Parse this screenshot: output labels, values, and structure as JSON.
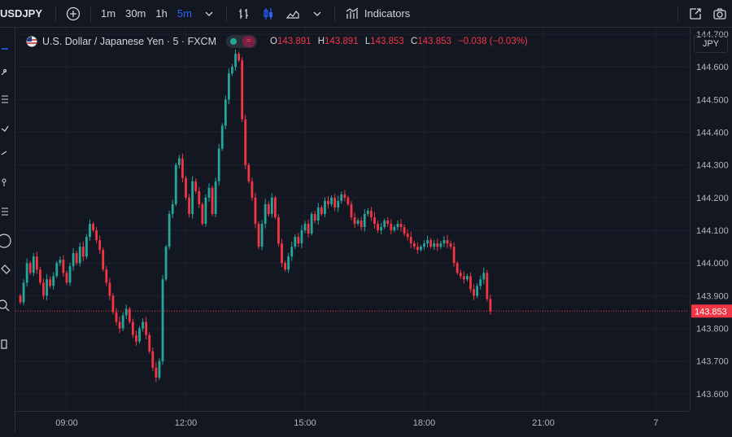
{
  "toolbar": {
    "symbol": "USDJPY",
    "intervals": [
      "1m",
      "30m",
      "1h",
      "5m"
    ],
    "active_interval": "5m",
    "indicators_label": "Indicators"
  },
  "legend": {
    "title": "U.S. Dollar / Japanese Yen · 5 · FXCM",
    "o_label": "O",
    "o_value": "143.891",
    "h_label": "H",
    "h_value": "143.891",
    "l_label": "L",
    "l_value": "143.853",
    "c_label": "C",
    "c_value": "143.853",
    "change": "−0.038 (−0.03%)"
  },
  "currency_selector": "JPY",
  "colors": {
    "up": "#26a69a",
    "down": "#f23645",
    "background": "#131722",
    "grid": "#1e222d"
  },
  "chart_data": {
    "type": "candlestick",
    "ylim": [
      143.55,
      144.72
    ],
    "yticks": [
      143.6,
      143.7,
      143.8,
      143.9,
      144.0,
      144.1,
      144.2,
      144.3,
      144.4,
      144.5,
      144.6,
      144.7
    ],
    "ytick_labels": [
      "143.600",
      "143.700",
      "143.800",
      "143.900",
      "144.000",
      "144.100",
      "144.200",
      "144.300",
      "144.400",
      "144.500",
      "144.600",
      "144.700"
    ],
    "xticks": [
      {
        "label": "09:00",
        "bar": 14
      },
      {
        "label": "12:00",
        "bar": 50
      },
      {
        "label": "15:00",
        "bar": 86
      },
      {
        "label": "18:00",
        "bar": 122
      },
      {
        "label": "21:00",
        "bar": 158
      },
      {
        "label": "7",
        "bar": 192
      }
    ],
    "last_price": 143.853,
    "last_price_label": "143.853",
    "closes": [
      143.88,
      143.94,
      144.0,
      143.97,
      144.02,
      143.98,
      143.94,
      143.9,
      143.95,
      143.93,
      143.96,
      144.0,
      144.01,
      143.97,
      143.94,
      143.99,
      144.03,
      144.0,
      144.05,
      144.02,
      144.08,
      144.12,
      144.1,
      144.07,
      144.04,
      143.98,
      143.94,
      143.9,
      143.85,
      143.82,
      143.8,
      143.84,
      143.86,
      143.82,
      143.78,
      143.76,
      143.8,
      143.82,
      143.78,
      143.73,
      143.68,
      143.65,
      143.7,
      143.95,
      144.05,
      144.15,
      144.18,
      144.3,
      144.32,
      144.26,
      144.2,
      144.15,
      144.25,
      144.22,
      144.18,
      144.12,
      144.2,
      144.23,
      144.15,
      144.25,
      144.35,
      144.42,
      144.5,
      144.58,
      144.6,
      144.64,
      144.62,
      144.44,
      144.3,
      144.25,
      144.2,
      144.12,
      144.05,
      144.12,
      144.18,
      144.15,
      144.2,
      144.14,
      144.06,
      144.0,
      143.98,
      144.02,
      144.05,
      144.08,
      144.06,
      144.1,
      144.12,
      144.09,
      144.15,
      144.13,
      144.17,
      144.15,
      144.19,
      144.18,
      144.2,
      144.17,
      144.19,
      144.21,
      144.2,
      144.18,
      144.14,
      144.12,
      144.13,
      144.11,
      144.15,
      144.16,
      144.14,
      144.12,
      144.1,
      144.11,
      144.13,
      144.12,
      144.1,
      144.11,
      144.12,
      144.11,
      144.09,
      144.08,
      144.06,
      144.05,
      144.04,
      144.05,
      144.06,
      144.07,
      144.05,
      144.06,
      144.05,
      144.06,
      144.07,
      144.06,
      144.05,
      144.0,
      143.97,
      143.96,
      143.95,
      143.96,
      143.92,
      143.9,
      143.93,
      143.95,
      143.97,
      143.89,
      143.853
    ]
  }
}
